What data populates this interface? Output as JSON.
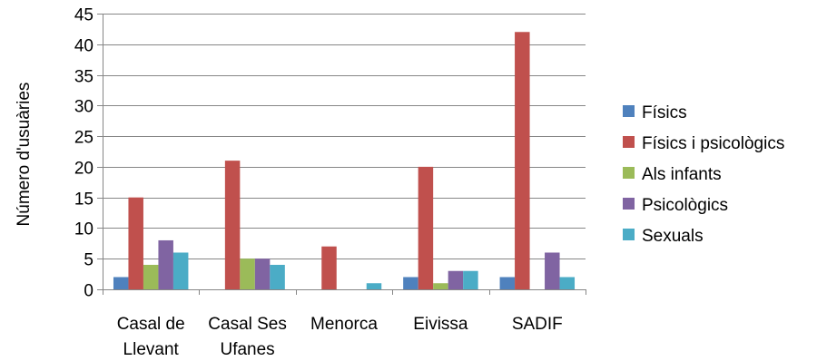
{
  "chart_data": {
    "type": "bar",
    "categories": [
      [
        "Casal de",
        "Llevant"
      ],
      [
        "Casal Ses",
        "Ufanes"
      ],
      [
        "Menorca"
      ],
      [
        "Eivissa"
      ],
      [
        "SADIF"
      ]
    ],
    "series": [
      {
        "name": "Físics",
        "color": "#4f81bd",
        "values": [
          2,
          0,
          0,
          2,
          2
        ]
      },
      {
        "name": "Físics i psicològics",
        "color": "#c0504d",
        "values": [
          15,
          21,
          7,
          20,
          42
        ]
      },
      {
        "name": "Als infants",
        "color": "#9bbb59",
        "values": [
          4,
          5,
          0,
          1,
          0
        ]
      },
      {
        "name": "Psicològics",
        "color": "#8064a2",
        "values": [
          8,
          5,
          0,
          3,
          6
        ]
      },
      {
        "name": "Sexuals",
        "color": "#4bacc6",
        "values": [
          6,
          4,
          1,
          3,
          2
        ]
      }
    ],
    "ylabel": "Número d'usuàries",
    "ylim": [
      0,
      45
    ],
    "yticks": [
      0,
      5,
      10,
      15,
      20,
      25,
      30,
      35,
      40,
      45
    ],
    "grid": true,
    "legend_position": "right"
  }
}
